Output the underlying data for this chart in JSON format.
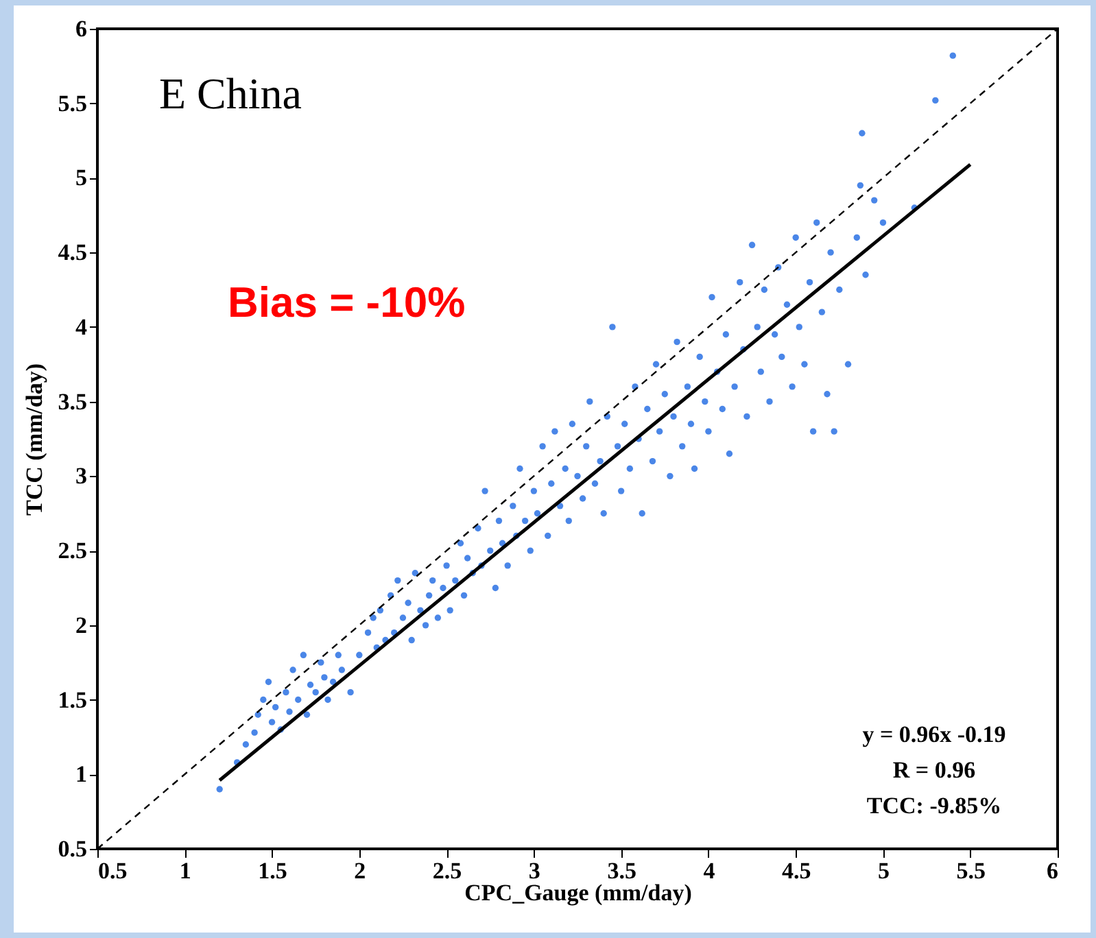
{
  "chart_data": {
    "type": "scatter",
    "xlabel": "CPC_Gauge (mm/day)",
    "ylabel": "TCC (mm/day)",
    "annotations": [
      "E China",
      "Bias = -10%",
      "y = 0.96x -0.19",
      "R = 0.96",
      "TCC: -9.85%"
    ],
    "xlim": [
      0.5,
      6
    ],
    "ylim": [
      0.5,
      6
    ],
    "xticks": [
      0.5,
      1,
      1.5,
      2,
      2.5,
      3,
      3.5,
      4,
      4.5,
      5,
      5.5,
      6
    ],
    "yticks": [
      0.5,
      1,
      1.5,
      2,
      2.5,
      3,
      3.5,
      4,
      4.5,
      5,
      5.5,
      6
    ],
    "grid": false,
    "series": [
      {
        "marker": "circle",
        "color": "#4a86e8",
        "x": [
          1.2,
          1.3,
          1.35,
          1.4,
          1.42,
          1.45,
          1.48,
          1.5,
          1.52,
          1.55,
          1.58,
          1.6,
          1.62,
          1.65,
          1.68,
          1.7,
          1.72,
          1.75,
          1.78,
          1.8,
          1.82,
          1.85,
          1.88,
          1.9,
          1.95,
          2.0,
          2.05,
          2.08,
          2.1,
          2.12,
          2.15,
          2.18,
          2.2,
          2.22,
          2.25,
          2.28,
          2.3,
          2.32,
          2.35,
          2.38,
          2.4,
          2.42,
          2.45,
          2.48,
          2.5,
          2.52,
          2.55,
          2.58,
          2.6,
          2.62,
          2.65,
          2.68,
          2.7,
          2.72,
          2.75,
          2.78,
          2.8,
          2.82,
          2.85,
          2.88,
          2.9,
          2.92,
          2.95,
          2.98,
          3.0,
          3.02,
          3.05,
          3.08,
          3.1,
          3.12,
          3.15,
          3.18,
          3.2,
          3.22,
          3.25,
          3.28,
          3.3,
          3.32,
          3.35,
          3.38,
          3.4,
          3.42,
          3.45,
          3.48,
          3.5,
          3.52,
          3.55,
          3.58,
          3.6,
          3.62,
          3.65,
          3.68,
          3.7,
          3.72,
          3.75,
          3.78,
          3.8,
          3.82,
          3.85,
          3.88,
          3.9,
          3.92,
          3.95,
          3.98,
          4.0,
          4.02,
          4.05,
          4.08,
          4.1,
          4.12,
          4.15,
          4.18,
          4.2,
          4.22,
          4.25,
          4.28,
          4.3,
          4.32,
          4.35,
          4.38,
          4.4,
          4.42,
          4.45,
          4.48,
          4.5,
          4.52,
          4.55,
          4.58,
          4.6,
          4.62,
          4.65,
          4.68,
          4.7,
          4.72,
          4.75,
          4.8,
          4.85,
          4.87,
          4.9,
          4.95,
          5.0,
          5.18,
          5.3,
          5.4,
          4.88
        ],
        "values": [
          0.9,
          1.08,
          1.2,
          1.28,
          1.4,
          1.5,
          1.62,
          1.35,
          1.45,
          1.3,
          1.55,
          1.42,
          1.7,
          1.5,
          1.8,
          1.4,
          1.6,
          1.55,
          1.75,
          1.65,
          1.5,
          1.62,
          1.8,
          1.7,
          1.55,
          1.8,
          1.95,
          2.05,
          1.85,
          2.1,
          1.9,
          2.2,
          1.95,
          2.3,
          2.05,
          2.15,
          1.9,
          2.35,
          2.1,
          2.0,
          2.2,
          2.3,
          2.05,
          2.25,
          2.4,
          2.1,
          2.3,
          2.55,
          2.2,
          2.45,
          2.35,
          2.65,
          2.4,
          2.9,
          2.5,
          2.25,
          2.7,
          2.55,
          2.4,
          2.8,
          2.6,
          3.05,
          2.7,
          2.5,
          2.9,
          2.75,
          3.2,
          2.6,
          2.95,
          3.3,
          2.8,
          3.05,
          2.7,
          3.35,
          3.0,
          2.85,
          3.2,
          3.5,
          2.95,
          3.1,
          2.75,
          3.4,
          4.0,
          3.2,
          2.9,
          3.35,
          3.05,
          3.6,
          3.25,
          2.75,
          3.45,
          3.1,
          3.75,
          3.3,
          3.55,
          3.0,
          3.4,
          3.9,
          3.2,
          3.6,
          3.35,
          3.05,
          3.8,
          3.5,
          3.3,
          4.2,
          3.7,
          3.45,
          3.95,
          3.15,
          3.6,
          4.3,
          3.85,
          3.4,
          4.55,
          4.0,
          3.7,
          4.25,
          3.5,
          3.95,
          4.4,
          3.8,
          4.15,
          3.6,
          4.6,
          4.0,
          3.75,
          4.3,
          3.3,
          4.7,
          4.1,
          3.55,
          4.5,
          3.3,
          4.25,
          3.75,
          4.6,
          4.95,
          4.35,
          4.85,
          4.7,
          4.8,
          5.52,
          5.82,
          5.3
        ]
      },
      {
        "type": "line",
        "color": "#000000",
        "line_style": "solid",
        "x": [
          1.2,
          5.5
        ],
        "values": [
          0.96,
          5.09
        ]
      },
      {
        "type": "line",
        "color": "#000000",
        "line_style": "dashed",
        "x": [
          0.5,
          6
        ],
        "values": [
          0.5,
          6
        ]
      }
    ]
  }
}
